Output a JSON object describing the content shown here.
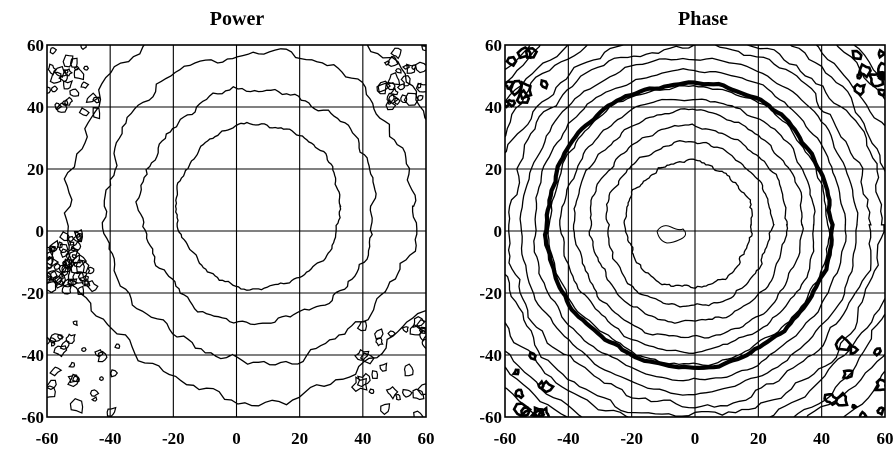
{
  "chart_data": [
    {
      "type": "contour",
      "title": "Power",
      "xlim": [
        -60,
        60
      ],
      "ylim": [
        -60,
        60
      ],
      "x_ticks": [
        "-60",
        "-40",
        "-20",
        "0",
        "20",
        "40",
        "60"
      ],
      "y_ticks": [
        "60",
        "40",
        "20",
        "0",
        "-20",
        "-40",
        "-60"
      ],
      "grid": true,
      "center": [
        7,
        8
      ],
      "contour_radii": [
        26,
        37,
        49,
        61
      ],
      "noise": "high near corners"
    },
    {
      "type": "contour",
      "title": "Phase",
      "xlim": [
        -60,
        60
      ],
      "ylim": [
        -60,
        60
      ],
      "x_ticks": [
        "-60",
        "-40",
        "-20",
        "0",
        "20",
        "40",
        "60"
      ],
      "y_ticks": [
        "60",
        "40",
        "20",
        "0",
        "-20",
        "-40",
        "-60"
      ],
      "grid": true,
      "center": [
        -2,
        2
      ],
      "contour_radii": [
        20,
        26,
        31,
        36,
        40,
        44,
        49,
        53,
        57,
        61,
        65,
        69,
        73,
        77
      ],
      "highlighted_contour_radius": 45
    }
  ]
}
